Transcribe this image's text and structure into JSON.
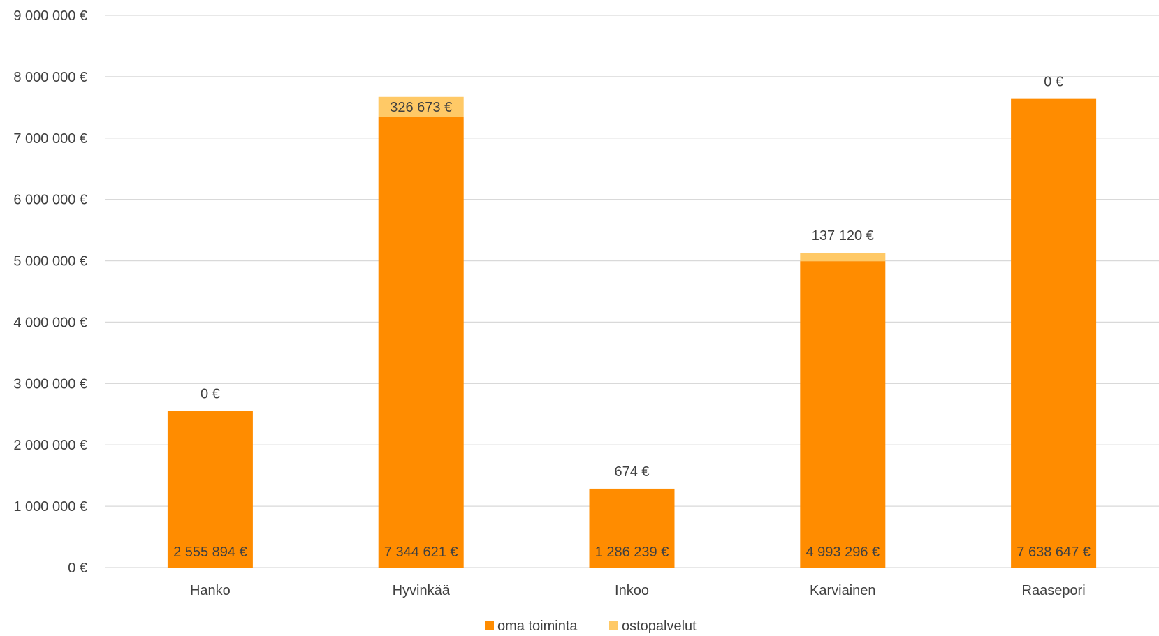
{
  "chart_data": {
    "type": "bar",
    "stacked": true,
    "title": "",
    "xlabel": "",
    "ylabel": "",
    "categories": [
      "Hanko",
      "Hyvinkää",
      "Inkoo",
      "Karviainen",
      "Raasepori"
    ],
    "series": [
      {
        "name": "oma toiminta",
        "color": "#FF8C00",
        "values": [
          2555894,
          7344621,
          1286239,
          4993296,
          7638647
        ],
        "labels": [
          "2 555 894 €",
          "7 344 621 €",
          "1 286 239 €",
          "4 993 296 €",
          "7 638 647 €"
        ]
      },
      {
        "name": "ostopalvelut",
        "color": "#FFC966",
        "values": [
          0,
          326673,
          674,
          137120,
          0
        ],
        "labels": [
          "0 €",
          "326 673 €",
          "674 €",
          "137 120 €",
          "0 €"
        ]
      }
    ],
    "ylim": [
      0,
      9000000
    ],
    "yticks": [
      0,
      1000000,
      2000000,
      3000000,
      4000000,
      5000000,
      6000000,
      7000000,
      8000000,
      9000000
    ],
    "ytick_labels": [
      "0 €",
      "1 000 000 €",
      "2 000 000 €",
      "3 000 000 €",
      "4 000 000 €",
      "5 000 000 €",
      "6 000 000 €",
      "7 000 000 €",
      "8 000 000 €",
      "9 000 000 €"
    ],
    "grid": true,
    "gridline_color": "#D9D9D9",
    "legend_position": "bottom"
  }
}
